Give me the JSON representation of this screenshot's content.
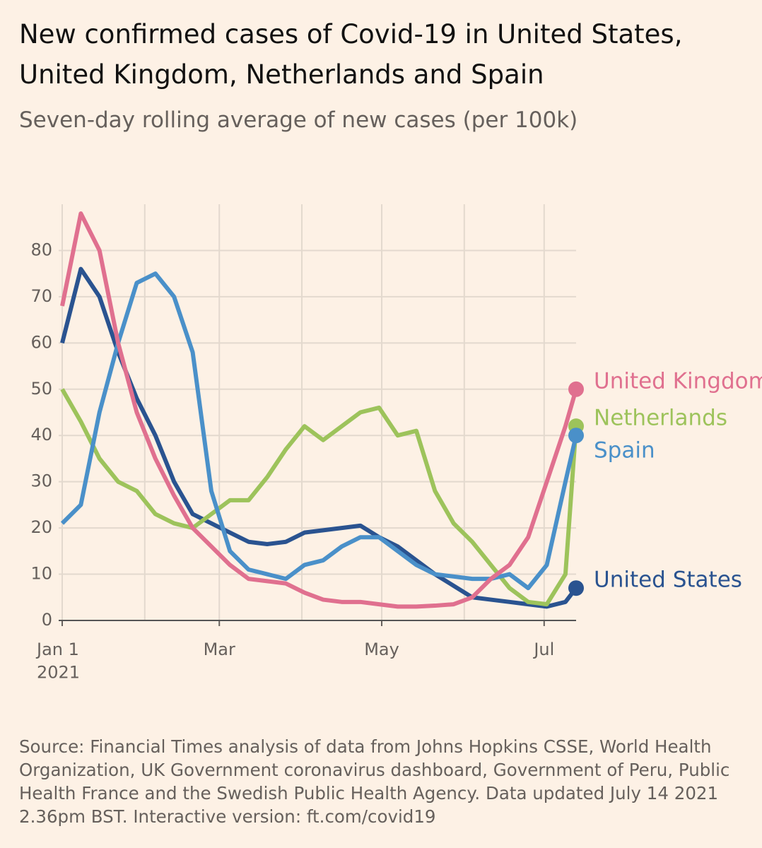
{
  "chart_data": {
    "type": "line",
    "title": "New confirmed cases of Covid-19 in United States, United Kingdom, Netherlands and Spain",
    "subtitle": "Seven-day rolling average of new cases (per 100k)",
    "source": "Source: Financial Times analysis of data from Johns Hopkins CSSE, World Health Organization, UK Government coronavirus dashboard, Government of Peru, Public Health France and the Swedish Public Health Agency. Data updated July 14 2021 2.36pm BST. Interactive version: ft.com/covid19",
    "x": [
      "2021-01-01",
      "2021-01-08",
      "2021-01-15",
      "2021-01-22",
      "2021-01-29",
      "2021-02-05",
      "2021-02-12",
      "2021-02-19",
      "2021-02-26",
      "2021-03-05",
      "2021-03-12",
      "2021-03-19",
      "2021-03-26",
      "2021-04-02",
      "2021-04-09",
      "2021-04-16",
      "2021-04-23",
      "2021-04-30",
      "2021-05-07",
      "2021-05-14",
      "2021-05-21",
      "2021-05-28",
      "2021-06-04",
      "2021-06-11",
      "2021-06-18",
      "2021-06-25",
      "2021-07-02",
      "2021-07-09",
      "2021-07-13"
    ],
    "series": [
      {
        "name": "United States",
        "color": "#2a5390",
        "values": [
          60,
          76,
          70,
          58,
          48,
          40,
          30,
          23,
          21,
          19,
          17,
          16.5,
          17,
          19,
          19.5,
          20,
          20.5,
          18,
          16,
          13,
          10,
          7.5,
          5,
          4.5,
          4,
          3.5,
          3,
          4,
          7
        ]
      },
      {
        "name": "Netherlands",
        "color": "#9dc35b",
        "values": [
          50,
          43,
          35,
          30,
          28,
          23,
          21,
          20,
          23,
          26,
          26,
          31,
          37,
          42,
          39,
          42,
          45,
          46,
          40,
          41,
          28,
          21,
          17,
          12,
          7,
          4,
          3.5,
          10,
          42
        ]
      },
      {
        "name": "Spain",
        "color": "#4a90c9",
        "values": [
          21,
          25,
          45,
          60,
          73,
          75,
          70,
          58,
          28,
          15,
          11,
          10,
          9,
          12,
          13,
          16,
          18,
          18,
          15,
          12,
          10,
          9.5,
          9,
          9,
          10,
          7,
          12,
          30,
          40
        ]
      },
      {
        "name": "United Kingdom",
        "color": "#e0708f",
        "values": [
          68,
          88,
          80,
          60,
          45,
          35,
          27,
          20,
          16,
          12,
          9,
          8.5,
          8,
          6,
          4.5,
          4,
          4,
          3.5,
          3,
          3,
          3.2,
          3.5,
          5,
          9,
          12,
          18,
          30,
          42,
          50
        ]
      }
    ],
    "xlim": [
      "2021-01-01",
      "2021-07-13"
    ],
    "xticks": [
      {
        "value": "2021-01-01",
        "label": "Jan 1\n2021"
      },
      {
        "value": "2021-03-01",
        "label": "Mar"
      },
      {
        "value": "2021-05-01",
        "label": "May"
      },
      {
        "value": "2021-07-01",
        "label": "Jul"
      }
    ],
    "xminor": [
      "2021-02-01",
      "2021-04-01",
      "2021-06-01"
    ],
    "ylim": [
      0,
      90
    ],
    "yticks": [
      0,
      10,
      20,
      30,
      40,
      50,
      60,
      70,
      80
    ],
    "grid": true
  }
}
